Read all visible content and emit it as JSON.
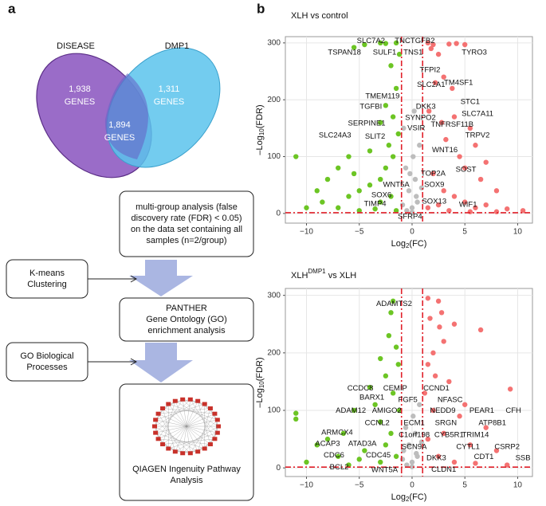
{
  "panel_a": {
    "letter": "a",
    "venn": {
      "left": {
        "name": "DISEASE",
        "count": "1,938",
        "unit": "GENES"
      },
      "right": {
        "name": "DMP1",
        "count": "1,311",
        "unit": "GENES"
      },
      "overlap": {
        "count": "1,894",
        "unit": "GENES"
      }
    },
    "steps": [
      {
        "lines": [
          "multi-group analysis (false",
          "discovery rate (FDR) < 0.05)",
          "on the data set containing all",
          "samples (n=2/group)"
        ]
      },
      {
        "lines": [
          "PANTHER",
          "Gene Ontology (GO)",
          "enrichment analysis"
        ]
      },
      {
        "lines": [
          "QIAGEN Ingenuity Pathway",
          "Analysis"
        ]
      }
    ],
    "side_steps": [
      {
        "lines": [
          "K-means",
          "Clustering"
        ]
      },
      {
        "lines": [
          "GO Biological",
          "Processes"
        ]
      }
    ]
  },
  "panel_b": {
    "letter": "b"
  },
  "chart_data": [
    {
      "type": "scatter",
      "title": "XLH vs control",
      "x_label": {
        "pre": "Log",
        "sub": "2",
        "post": "(FC)"
      },
      "y_label": {
        "pre": "–Log",
        "sub": "10",
        "post": "(FDR)"
      },
      "xlim": [
        -12,
        11.4
      ],
      "ylim": [
        -17,
        311
      ],
      "xticks": [
        {
          "value": -10,
          "label": "−10"
        },
        {
          "value": -5,
          "label": "−5"
        },
        0,
        5,
        10
      ],
      "yticks": [
        0,
        100,
        200,
        300
      ],
      "grid": true,
      "thresholds": {
        "x": [
          -1,
          1
        ],
        "y": 1.3,
        "color": "#e0202a"
      },
      "series": [
        {
          "color": "#bdbdbd",
          "x": [
            -0.5,
            0,
            0.5,
            -0.3,
            0.3,
            0.1,
            -0.6,
            0.7,
            -0.8,
            0.4,
            0,
            -0.9,
            0.9,
            0.2,
            -0.2
          ],
          "y": [
            5,
            10,
            20,
            40,
            60,
            100,
            80,
            120,
            150,
            30,
            2,
            15,
            45,
            180,
            70
          ]
        },
        {
          "color": "#6cc524",
          "x": [
            -3,
            -2.5,
            -4.5,
            -5.5,
            -1.5,
            -1.2,
            -2,
            -1.5,
            -2.5,
            -1.8,
            -3,
            -1.3,
            -2.2,
            -4,
            -6,
            -11,
            -7,
            -5.5,
            -3,
            -8,
            -9,
            -4,
            -6,
            -10,
            -7,
            -3,
            -2,
            -5,
            -1.5,
            -3.5,
            -8.5,
            -5,
            -2.5,
            -1.8
          ],
          "y": [
            300,
            299,
            297,
            292,
            300,
            280,
            260,
            220,
            190,
            170,
            160,
            140,
            120,
            110,
            100,
            100,
            80,
            70,
            60,
            60,
            40,
            50,
            30,
            10,
            10,
            20,
            30,
            5,
            5,
            8,
            20,
            40,
            80,
            100
          ]
        },
        {
          "color": "#f47272",
          "x": [
            1.5,
            2,
            3.5,
            4.2,
            5,
            1.8,
            2.5,
            3,
            2.2,
            3.8,
            1.6,
            4,
            2.8,
            5.5,
            3.2,
            6,
            4.5,
            7,
            5,
            2,
            6.5,
            8,
            3,
            4,
            5,
            6,
            7,
            9,
            2.5,
            1.5,
            10.5,
            3.5,
            5.5,
            8
          ],
          "y": [
            300,
            297,
            298,
            299,
            297,
            290,
            280,
            240,
            230,
            220,
            180,
            170,
            160,
            150,
            130,
            120,
            100,
            90,
            80,
            70,
            60,
            40,
            40,
            30,
            20,
            10,
            15,
            8,
            15,
            10,
            5,
            5,
            3,
            3
          ]
        }
      ],
      "labels": [
        {
          "text": "SLC7A2",
          "x": -3.9,
          "y": 303
        },
        {
          "text": "TNC",
          "x": -0.9,
          "y": 303
        },
        {
          "text": "TGFB2",
          "x": 1.0,
          "y": 303
        },
        {
          "text": "TSPAN18",
          "x": -6.4,
          "y": 283
        },
        {
          "text": "SULF1",
          "x": -2.6,
          "y": 283
        },
        {
          "text": "TNS1",
          "x": 0.1,
          "y": 283
        },
        {
          "text": "TYRO3",
          "x": 5.9,
          "y": 283
        },
        {
          "text": "TFPI2",
          "x": 1.7,
          "y": 252
        },
        {
          "text": "TM4SF1",
          "x": 4.4,
          "y": 230
        },
        {
          "text": "SLC2A1",
          "x": 1.8,
          "y": 226
        },
        {
          "text": "TMEM119",
          "x": -2.8,
          "y": 206
        },
        {
          "text": "TGFBI",
          "x": -3.9,
          "y": 188
        },
        {
          "text": "DKK3",
          "x": 1.3,
          "y": 188
        },
        {
          "text": "STC1",
          "x": 5.5,
          "y": 196
        },
        {
          "text": "SLC7A11",
          "x": 6.2,
          "y": 175
        },
        {
          "text": "SYNPO2",
          "x": 0.8,
          "y": 168
        },
        {
          "text": "SERPINE1",
          "x": -4.3,
          "y": 158
        },
        {
          "text": "TNFRSF11B",
          "x": 3.8,
          "y": 156
        },
        {
          "text": "VSIR",
          "x": 0.4,
          "y": 150
        },
        {
          "text": "TRPV2",
          "x": 6.2,
          "y": 137
        },
        {
          "text": "SLC24A3",
          "x": -7.3,
          "y": 137
        },
        {
          "text": "SLIT2",
          "x": -3.5,
          "y": 135
        },
        {
          "text": "WNT16",
          "x": 3.1,
          "y": 111
        },
        {
          "text": "SOST",
          "x": 5.1,
          "y": 77
        },
        {
          "text": "TOP2A",
          "x": 2.0,
          "y": 70
        },
        {
          "text": "WNT5A",
          "x": -1.5,
          "y": 50
        },
        {
          "text": "SOX9",
          "x": 2.1,
          "y": 50
        },
        {
          "text": "SOX6",
          "x": -2.9,
          "y": 32
        },
        {
          "text": "SOX13",
          "x": 2.1,
          "y": 21
        },
        {
          "text": "TIMP4",
          "x": -3.5,
          "y": 17
        },
        {
          "text": "WIF1",
          "x": 5.3,
          "y": 15
        },
        {
          "text": "SFRP4",
          "x": -0.2,
          "y": -6
        }
      ]
    },
    {
      "type": "scatter",
      "title": {
        "pre": "XLH",
        "sup": "DMP1",
        "post": " vs XLH"
      },
      "x_label": {
        "pre": "Log",
        "sub": "2",
        "post": "(FC)"
      },
      "y_label": {
        "pre": "–Log",
        "sub": "10",
        "post": "(FDR)"
      },
      "xlim": [
        -12,
        11.4
      ],
      "ylim": [
        -15,
        312
      ],
      "xticks": [
        {
          "value": -10,
          "label": "−10"
        },
        {
          "value": -5,
          "label": "−5"
        },
        0,
        5,
        10
      ],
      "yticks": [
        0,
        100,
        200,
        300
      ],
      "grid": true,
      "thresholds": {
        "x": [
          -1,
          1
        ],
        "y": 1.3,
        "color": "#e0202a"
      },
      "series": [
        {
          "color": "#bdbdbd",
          "x": [
            -0.5,
            0,
            0.5,
            -0.3,
            0.3,
            0.1,
            -0.6,
            0.7,
            -0.8,
            0.4,
            0,
            -0.9,
            0.9
          ],
          "y": [
            5,
            10,
            20,
            40,
            60,
            90,
            70,
            110,
            30,
            25,
            2,
            15,
            45
          ]
        },
        {
          "color": "#6cc524",
          "x": [
            -1.8,
            -2,
            -2.2,
            -1.5,
            -3,
            -1.3,
            -2.5,
            -4,
            -1.8,
            -3.5,
            -5.5,
            -11,
            -11,
            -8,
            -9,
            -6.5,
            -3,
            -2,
            -4.5,
            -7,
            -5,
            -3,
            -1.5,
            -10,
            -6,
            -2.5,
            -1.2
          ],
          "y": [
            290,
            270,
            230,
            210,
            190,
            180,
            160,
            140,
            130,
            110,
            100,
            95,
            85,
            50,
            40,
            60,
            80,
            60,
            30,
            20,
            15,
            10,
            20,
            10,
            5,
            40,
            100
          ]
        },
        {
          "color": "#f47272",
          "x": [
            1.5,
            2.5,
            2.8,
            1.7,
            2.6,
            4,
            6.5,
            3,
            2,
            1.5,
            3.5,
            9.3,
            5,
            2,
            4.5,
            7,
            3,
            1.5,
            5.5,
            8,
            2.5,
            4,
            6,
            9,
            1.2,
            2.2
          ],
          "y": [
            295,
            290,
            270,
            260,
            245,
            250,
            240,
            220,
            200,
            180,
            150,
            137,
            110,
            100,
            90,
            70,
            60,
            50,
            40,
            30,
            20,
            10,
            8,
            5,
            130,
            160
          ]
        }
      ],
      "labels": [
        {
          "text": "ADAMTS2",
          "x": -1.7,
          "y": 285
        },
        {
          "text": "CCDC8",
          "x": -4.9,
          "y": 138
        },
        {
          "text": "CEMIP",
          "x": -1.6,
          "y": 138
        },
        {
          "text": "CCND1",
          "x": 2.3,
          "y": 138
        },
        {
          "text": "BARX1",
          "x": -3.8,
          "y": 122
        },
        {
          "text": "FGF5",
          "x": -0.4,
          "y": 118
        },
        {
          "text": "NFASC",
          "x": 3.6,
          "y": 118
        },
        {
          "text": "ADAM12",
          "x": -5.8,
          "y": 99
        },
        {
          "text": "AMIGO2",
          "x": -2.4,
          "y": 99
        },
        {
          "text": "NEDD9",
          "x": 2.9,
          "y": 99
        },
        {
          "text": "PEAR1",
          "x": 6.6,
          "y": 99
        },
        {
          "text": "CFH",
          "x": 9.6,
          "y": 99
        },
        {
          "text": "CCNL2",
          "x": -3.3,
          "y": 78
        },
        {
          "text": "ECM1",
          "x": 0.2,
          "y": 78
        },
        {
          "text": "SRGN",
          "x": 3.2,
          "y": 78
        },
        {
          "text": "ATP8B1",
          "x": 7.6,
          "y": 78
        },
        {
          "text": "ARMCX4",
          "x": -7.1,
          "y": 61
        },
        {
          "text": "C1orf198",
          "x": 0.2,
          "y": 57
        },
        {
          "text": "CYB5R1",
          "x": 3.5,
          "y": 57
        },
        {
          "text": "TRIM14",
          "x": 6.0,
          "y": 57
        },
        {
          "text": "ACAP3",
          "x": -8.0,
          "y": 42
        },
        {
          "text": "ATAD3A",
          "x": -4.7,
          "y": 42
        },
        {
          "text": "SCN9A",
          "x": 0.2,
          "y": 36
        },
        {
          "text": "CYTL1",
          "x": 5.3,
          "y": 36
        },
        {
          "text": "CSRP2",
          "x": 9.0,
          "y": 36
        },
        {
          "text": "CDC6",
          "x": -7.4,
          "y": 22
        },
        {
          "text": "CDC45",
          "x": -3.2,
          "y": 22
        },
        {
          "text": "DKK3",
          "x": 2.3,
          "y": 17
        },
        {
          "text": "CDT1",
          "x": 6.8,
          "y": 19
        },
        {
          "text": "SSB",
          "x": 10.5,
          "y": 17
        },
        {
          "text": "BCL2",
          "x": -6.9,
          "y": 1
        },
        {
          "text": "WNT5A",
          "x": -2.6,
          "y": -4
        },
        {
          "text": "CLDN1",
          "x": 3.0,
          "y": -3
        }
      ]
    }
  ]
}
